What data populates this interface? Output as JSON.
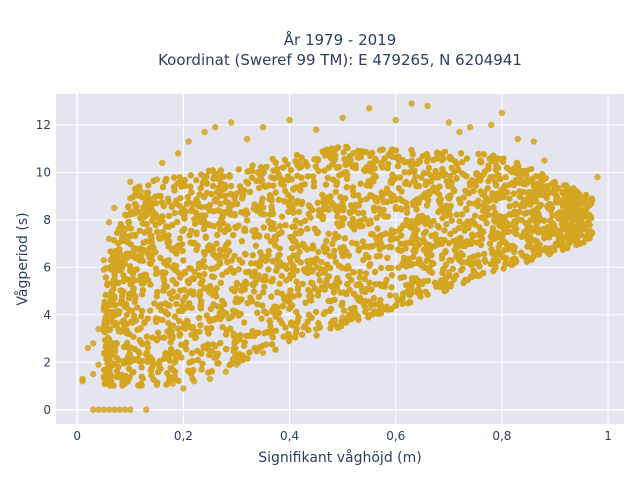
{
  "chart_data": {
    "type": "scatter",
    "title": "År 1979 - 2019",
    "subtitle": "Koordinat (Sweref 99 TM): E 479265, N 6204941",
    "xlabel": "Signifikant våghöjd (m)",
    "ylabel": "Vågperiod (s)",
    "xlim": [
      -0.04,
      1.03
    ],
    "ylim": [
      -0.6,
      13.3
    ],
    "x_ticks": [
      0,
      0.2,
      0.4,
      0.6,
      0.8,
      1
    ],
    "x_tick_labels": [
      "0",
      "0,2",
      "0,4",
      "0,6",
      "0,8",
      "1"
    ],
    "y_ticks": [
      0,
      2,
      4,
      6,
      8,
      10,
      12
    ],
    "y_tick_labels": [
      "0",
      "2",
      "4",
      "6",
      "8",
      "10",
      "12"
    ],
    "grid": true,
    "marker_color": "#D4A520",
    "plot_background": "#E5E5F0",
    "series": [
      {
        "points": [
          [
            0.03,
            0
          ],
          [
            0.04,
            0
          ],
          [
            0.05,
            0
          ],
          [
            0.06,
            0
          ],
          [
            0.07,
            0
          ],
          [
            0.08,
            0
          ],
          [
            0.09,
            0
          ],
          [
            0.1,
            0
          ],
          [
            0.13,
            0
          ],
          [
            0.01,
            1.2
          ],
          [
            0.01,
            1.3
          ],
          [
            0.02,
            2.6
          ],
          [
            0.03,
            1.5
          ],
          [
            0.03,
            2.8
          ],
          [
            0.04,
            1.9
          ],
          [
            0.04,
            3.4
          ],
          [
            0.05,
            1.4
          ],
          [
            0.05,
            4.2
          ],
          [
            0.05,
            5.9
          ],
          [
            0.05,
            6.3
          ],
          [
            0.06,
            1.6
          ],
          [
            0.06,
            7.2
          ],
          [
            0.06,
            7.9
          ],
          [
            0.07,
            8.5
          ],
          [
            0.08,
            6.0
          ],
          [
            0.09,
            1.1
          ],
          [
            0.09,
            7.6
          ],
          [
            0.1,
            9.6
          ],
          [
            0.12,
            9.2
          ],
          [
            0.15,
            9.7
          ],
          [
            0.16,
            10.4
          ],
          [
            0.19,
            10.8
          ],
          [
            0.21,
            11.3
          ],
          [
            0.24,
            11.7
          ],
          [
            0.26,
            11.9
          ],
          [
            0.29,
            12.1
          ],
          [
            0.32,
            11.4
          ],
          [
            0.35,
            11.9
          ],
          [
            0.4,
            12.2
          ],
          [
            0.45,
            11.8
          ],
          [
            0.5,
            12.3
          ],
          [
            0.55,
            12.7
          ],
          [
            0.6,
            12.2
          ],
          [
            0.63,
            12.9
          ],
          [
            0.66,
            12.8
          ],
          [
            0.7,
            12.1
          ],
          [
            0.72,
            11.7
          ],
          [
            0.74,
            11.9
          ],
          [
            0.78,
            12.0
          ],
          [
            0.8,
            12.5
          ],
          [
            0.83,
            11.4
          ],
          [
            0.86,
            11.3
          ],
          [
            0.88,
            10.5
          ],
          [
            0.9,
            9.6
          ],
          [
            0.93,
            9.2
          ],
          [
            0.95,
            8.9
          ],
          [
            0.97,
            8.8
          ],
          [
            0.98,
            9.8
          ],
          [
            0.2,
            0.9
          ],
          [
            0.25,
            1.3
          ],
          [
            0.3,
            1.9
          ],
          [
            0.35,
            2.4
          ],
          [
            0.4,
            3.0
          ],
          [
            0.45,
            3.4
          ],
          [
            0.5,
            3.9
          ],
          [
            0.55,
            4.3
          ],
          [
            0.6,
            4.8
          ],
          [
            0.65,
            5.3
          ],
          [
            0.7,
            5.8
          ],
          [
            0.75,
            6.2
          ],
          [
            0.8,
            6.6
          ],
          [
            0.85,
            7.1
          ],
          [
            0.12,
            1.1
          ],
          [
            0.15,
            1.05
          ],
          [
            0.18,
            1.1
          ],
          [
            0.22,
            1.2
          ],
          [
            0.28,
            1.6
          ],
          [
            0.1,
            8.9
          ],
          [
            0.11,
            9.1
          ]
        ]
      }
    ]
  }
}
